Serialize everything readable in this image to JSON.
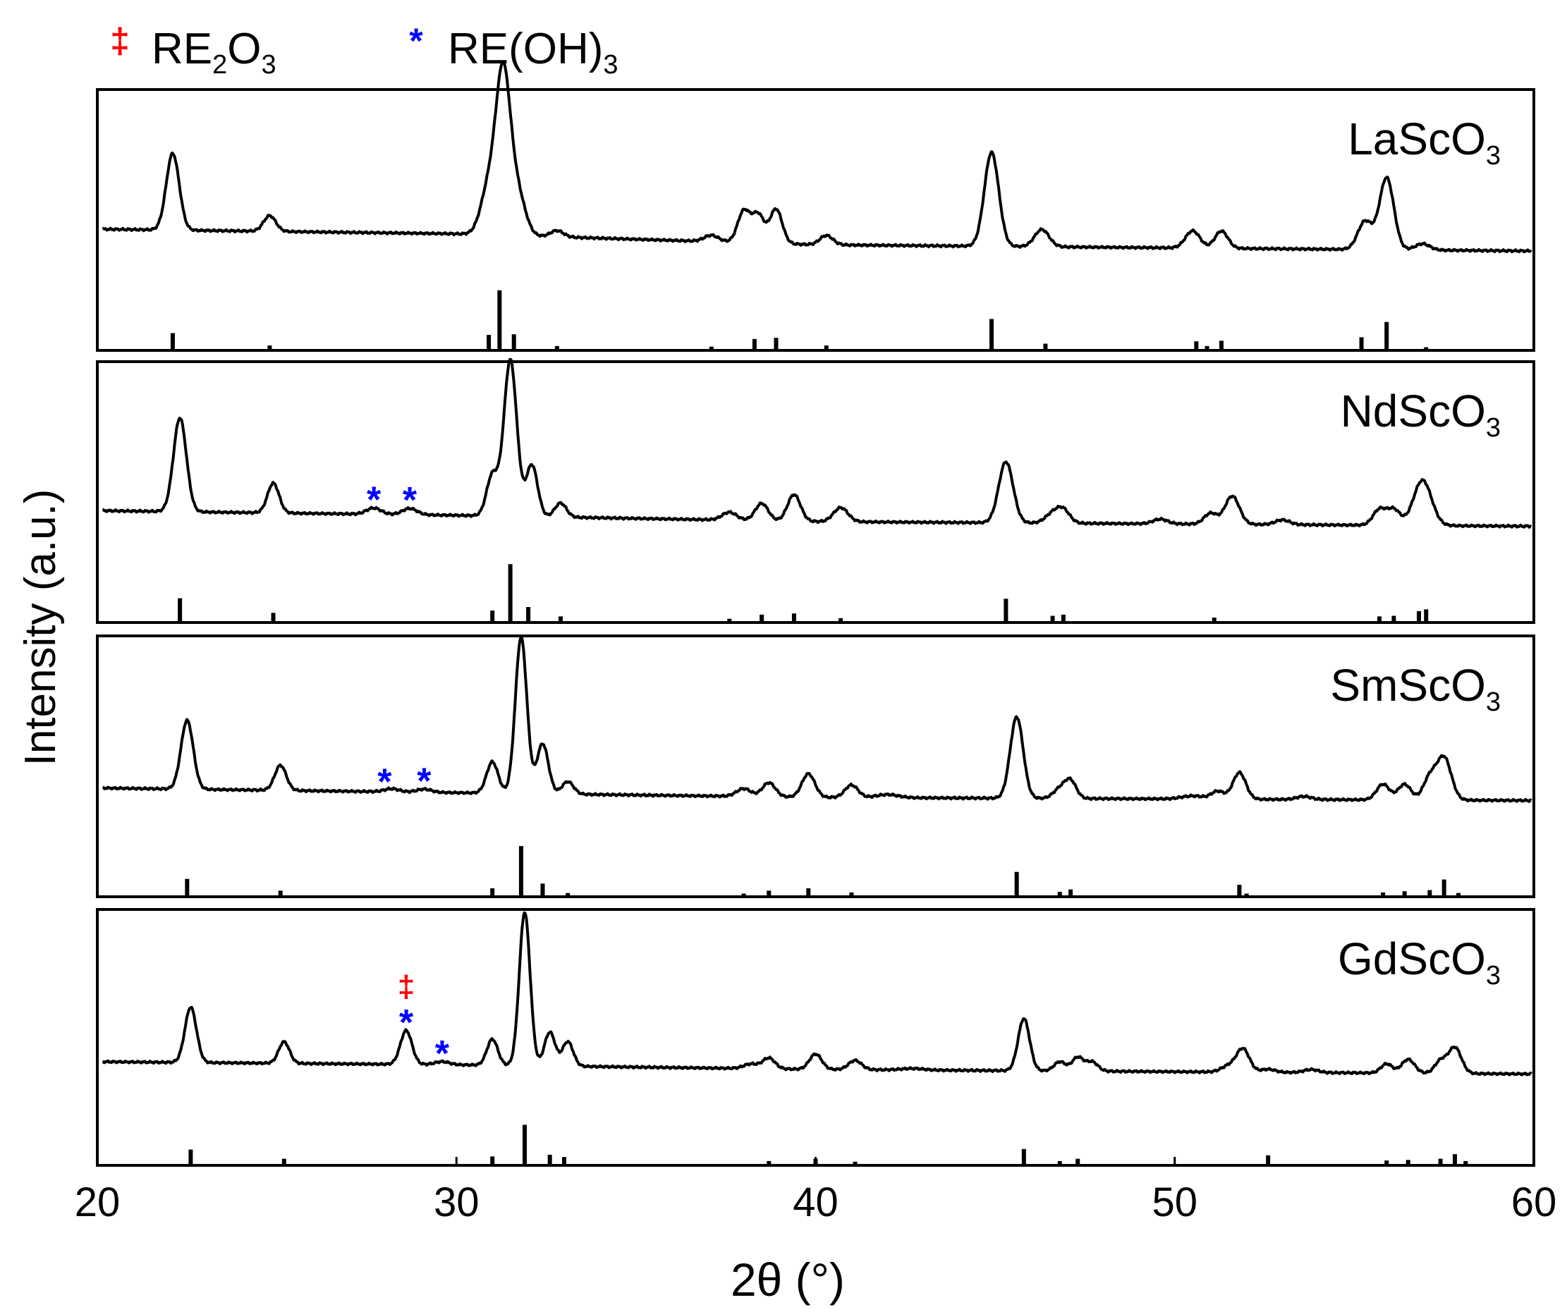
{
  "chart_data": {
    "type": "line",
    "xlabel": "2θ (°)",
    "ylabel": "Intensity (a.u.)",
    "xlim": [
      20,
      60
    ],
    "xticks": [
      "20",
      "30",
      "40",
      "50",
      "60"
    ],
    "legend": {
      "placement": "top-left",
      "entries": [
        {
          "symbol": "‡",
          "label_main": "RE",
          "label_sub1": "2",
          "label_mid": "O",
          "label_sub2": "3",
          "label_end": "",
          "color": "#ff0000"
        },
        {
          "symbol": "*",
          "label_main": "RE(OH)",
          "label_sub1": "3",
          "label_mid": "",
          "label_sub2": "",
          "label_end": "",
          "color": "#0000ff"
        }
      ]
    },
    "colors": {
      "curve": "#000000",
      "rare_earth_oxide": "#ff0000",
      "hydroxide": "#0000ff"
    },
    "panels": [
      {
        "name_main": "LaScO",
        "name_sub": "3",
        "baseline": [
          [
            20,
            0.2
          ],
          [
            30,
            0.17
          ],
          [
            40,
            0.1
          ],
          [
            60,
            0.06
          ]
        ],
        "peaks": [
          [
            22.1,
            0.49,
            0.18
          ],
          [
            24.8,
            0.1,
            0.17
          ],
          [
            30.9,
            0.3,
            0.22
          ],
          [
            31.3,
            1.0,
            0.2
          ],
          [
            31.7,
            0.26,
            0.22
          ],
          [
            32.8,
            0.04,
            0.18
          ],
          [
            37.1,
            0.04,
            0.2
          ],
          [
            38.0,
            0.2,
            0.17
          ],
          [
            38.4,
            0.18,
            0.17
          ],
          [
            38.9,
            0.22,
            0.17
          ],
          [
            40.3,
            0.06,
            0.18
          ],
          [
            44.9,
            0.6,
            0.2
          ],
          [
            46.3,
            0.11,
            0.2
          ],
          [
            50.5,
            0.11,
            0.2
          ],
          [
            51.3,
            0.11,
            0.18
          ],
          [
            55.3,
            0.18,
            0.2
          ],
          [
            55.9,
            0.46,
            0.2
          ],
          [
            56.9,
            0.04,
            0.2
          ]
        ],
        "reference": [
          [
            22.1,
            0.27
          ],
          [
            24.8,
            0.06
          ],
          [
            30.9,
            0.24
          ],
          [
            31.2,
            1.0
          ],
          [
            31.6,
            0.25
          ],
          [
            32.8,
            0.05
          ],
          [
            37.1,
            0.04
          ],
          [
            38.3,
            0.17
          ],
          [
            38.9,
            0.19
          ],
          [
            40.3,
            0.06
          ],
          [
            44.9,
            0.51
          ],
          [
            46.4,
            0.09
          ],
          [
            50.6,
            0.13
          ],
          [
            50.9,
            0.05
          ],
          [
            51.3,
            0.14
          ],
          [
            55.2,
            0.2
          ],
          [
            55.9,
            0.46
          ],
          [
            57.0,
            0.03
          ]
        ],
        "markers": []
      },
      {
        "name_main": "NdScO",
        "name_sub": "3",
        "baseline": [
          [
            20,
            0.14
          ],
          [
            30,
            0.11
          ],
          [
            40,
            0.07
          ],
          [
            60,
            0.04
          ]
        ],
        "peaks": [
          [
            22.3,
            0.6,
            0.18
          ],
          [
            24.9,
            0.19,
            0.16
          ],
          [
            27.7,
            0.04,
            0.2
          ],
          [
            28.7,
            0.04,
            0.2
          ],
          [
            31.0,
            0.26,
            0.16
          ],
          [
            31.5,
            1.0,
            0.18
          ],
          [
            32.1,
            0.33,
            0.16
          ],
          [
            32.9,
            0.09,
            0.16
          ],
          [
            37.6,
            0.05,
            0.2
          ],
          [
            38.5,
            0.11,
            0.18
          ],
          [
            39.4,
            0.17,
            0.18
          ],
          [
            40.7,
            0.09,
            0.2
          ],
          [
            45.3,
            0.39,
            0.2
          ],
          [
            46.6,
            0.06,
            0.2
          ],
          [
            46.9,
            0.08,
            0.18
          ],
          [
            49.6,
            0.03,
            0.2
          ],
          [
            51.0,
            0.07,
            0.18
          ],
          [
            51.6,
            0.18,
            0.2
          ],
          [
            53.0,
            0.03,
            0.2
          ],
          [
            55.7,
            0.1,
            0.18
          ],
          [
            56.1,
            0.1,
            0.18
          ],
          [
            56.9,
            0.29,
            0.25
          ]
        ],
        "reference": [
          [
            22.3,
            0.39
          ],
          [
            24.9,
            0.14
          ],
          [
            31.0,
            0.18
          ],
          [
            31.5,
            0.97
          ],
          [
            32.0,
            0.24
          ],
          [
            32.9,
            0.08
          ],
          [
            37.6,
            0.04
          ],
          [
            38.5,
            0.11
          ],
          [
            39.4,
            0.13
          ],
          [
            40.7,
            0.05
          ],
          [
            45.3,
            0.38
          ],
          [
            46.6,
            0.09
          ],
          [
            46.9,
            0.11
          ],
          [
            51.1,
            0.06
          ],
          [
            55.7,
            0.08
          ],
          [
            56.1,
            0.09
          ],
          [
            56.8,
            0.17
          ],
          [
            57.0,
            0.2
          ]
        ],
        "markers": [
          {
            "x": 27.7,
            "symbols": [
              "*"
            ]
          },
          {
            "x": 28.7,
            "symbols": [
              "*"
            ]
          }
        ]
      },
      {
        "name_main": "SmScO",
        "name_sub": "3",
        "baseline": [
          [
            20,
            0.12
          ],
          [
            30,
            0.09
          ],
          [
            40,
            0.06
          ],
          [
            60,
            0.04
          ]
        ],
        "peaks": [
          [
            22.5,
            0.44,
            0.17
          ],
          [
            25.1,
            0.16,
            0.16
          ],
          [
            28.2,
            0.02,
            0.2
          ],
          [
            29.1,
            0.02,
            0.2
          ],
          [
            31.0,
            0.2,
            0.16
          ],
          [
            31.8,
            1.0,
            0.16
          ],
          [
            32.4,
            0.32,
            0.16
          ],
          [
            33.1,
            0.08,
            0.16
          ],
          [
            38.0,
            0.05,
            0.2
          ],
          [
            38.7,
            0.09,
            0.18
          ],
          [
            39.8,
            0.15,
            0.18
          ],
          [
            41.0,
            0.08,
            0.18
          ],
          [
            42.0,
            0.02,
            0.3
          ],
          [
            45.6,
            0.52,
            0.18
          ],
          [
            46.8,
            0.06,
            0.18
          ],
          [
            47.1,
            0.11,
            0.16
          ],
          [
            50.5,
            0.02,
            0.3
          ],
          [
            51.2,
            0.05,
            0.18
          ],
          [
            51.8,
            0.17,
            0.18
          ],
          [
            53.6,
            0.02,
            0.2
          ],
          [
            55.8,
            0.1,
            0.18
          ],
          [
            56.4,
            0.1,
            0.18
          ],
          [
            57.1,
            0.14,
            0.18
          ],
          [
            57.5,
            0.27,
            0.2
          ]
        ],
        "reference": [
          [
            22.5,
            0.28
          ],
          [
            25.1,
            0.08
          ],
          [
            31.0,
            0.12
          ],
          [
            31.8,
            0.84
          ],
          [
            32.4,
            0.2
          ],
          [
            33.1,
            0.04
          ],
          [
            38.0,
            0.03
          ],
          [
            38.7,
            0.08
          ],
          [
            39.8,
            0.12
          ],
          [
            41.0,
            0.05
          ],
          [
            45.6,
            0.4
          ],
          [
            46.8,
            0.06
          ],
          [
            47.1,
            0.1
          ],
          [
            51.8,
            0.18
          ],
          [
            52.0,
            0.03
          ],
          [
            55.8,
            0.05
          ],
          [
            56.4,
            0.07
          ],
          [
            57.1,
            0.09
          ],
          [
            57.5,
            0.27
          ],
          [
            57.9,
            0.04
          ]
        ],
        "markers": [
          {
            "x": 28.0,
            "symbols": [
              "*"
            ]
          },
          {
            "x": 29.1,
            "symbols": [
              "*"
            ]
          }
        ]
      },
      {
        "name_main": "GdScO",
        "name_sub": "3",
        "baseline": [
          [
            20,
            0.1
          ],
          [
            30,
            0.08
          ],
          [
            40,
            0.05
          ],
          [
            60,
            0.02
          ]
        ],
        "peaks": [
          [
            22.6,
            0.36,
            0.16
          ],
          [
            25.2,
            0.14,
            0.15
          ],
          [
            28.6,
            0.22,
            0.16
          ],
          [
            29.6,
            0.02,
            0.2
          ],
          [
            31.0,
            0.17,
            0.15
          ],
          [
            31.9,
            1.0,
            0.15
          ],
          [
            32.6,
            0.22,
            0.15
          ],
          [
            33.1,
            0.16,
            0.15
          ],
          [
            38.2,
            0.03,
            0.2
          ],
          [
            38.7,
            0.07,
            0.17
          ],
          [
            40.0,
            0.1,
            0.17
          ],
          [
            41.1,
            0.06,
            0.18
          ],
          [
            42.7,
            0.01,
            0.3
          ],
          [
            45.8,
            0.34,
            0.16
          ],
          [
            46.8,
            0.06,
            0.16
          ],
          [
            47.3,
            0.09,
            0.16
          ],
          [
            47.7,
            0.06,
            0.16
          ],
          [
            51.5,
            0.04,
            0.2
          ],
          [
            51.9,
            0.15,
            0.18
          ],
          [
            52.6,
            0.02,
            0.2
          ],
          [
            53.8,
            0.02,
            0.2
          ],
          [
            55.9,
            0.06,
            0.16
          ],
          [
            56.5,
            0.09,
            0.18
          ],
          [
            57.4,
            0.08,
            0.16
          ],
          [
            57.8,
            0.17,
            0.18
          ]
        ],
        "reference": [
          [
            22.6,
            0.25
          ],
          [
            25.2,
            0.09
          ],
          [
            31.0,
            0.13
          ],
          [
            31.9,
            0.68
          ],
          [
            32.6,
            0.16
          ],
          [
            33.0,
            0.12
          ],
          [
            38.7,
            0.05
          ],
          [
            40.0,
            0.09
          ],
          [
            41.1,
            0.04
          ],
          [
            45.8,
            0.26
          ],
          [
            46.8,
            0.05
          ],
          [
            47.3,
            0.09
          ],
          [
            52.6,
            0.15
          ],
          [
            55.9,
            0.06
          ],
          [
            56.5,
            0.07
          ],
          [
            57.4,
            0.09
          ],
          [
            57.8,
            0.17
          ],
          [
            58.1,
            0.05
          ]
        ],
        "markers": [
          {
            "x": 28.6,
            "symbols": [
              "*",
              "‡"
            ]
          },
          {
            "x": 29.6,
            "symbols": [
              "*"
            ]
          }
        ]
      }
    ]
  }
}
